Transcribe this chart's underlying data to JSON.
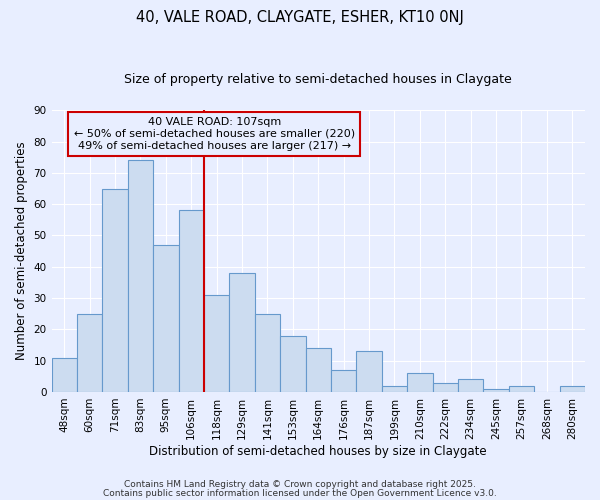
{
  "title": "40, VALE ROAD, CLAYGATE, ESHER, KT10 0NJ",
  "subtitle": "Size of property relative to semi-detached houses in Claygate",
  "xlabel": "Distribution of semi-detached houses by size in Claygate",
  "ylabel": "Number of semi-detached properties",
  "bar_labels": [
    "48sqm",
    "60sqm",
    "71sqm",
    "83sqm",
    "95sqm",
    "106sqm",
    "118sqm",
    "129sqm",
    "141sqm",
    "153sqm",
    "164sqm",
    "176sqm",
    "187sqm",
    "199sqm",
    "210sqm",
    "222sqm",
    "234sqm",
    "245sqm",
    "257sqm",
    "268sqm",
    "280sqm"
  ],
  "bar_values": [
    11,
    25,
    65,
    74,
    47,
    58,
    31,
    38,
    25,
    18,
    14,
    7,
    13,
    2,
    6,
    3,
    4,
    1,
    2,
    0,
    2
  ],
  "bar_color": "#ccdcf0",
  "bar_edge_color": "#6699cc",
  "vline_x": 5.5,
  "vline_color": "#cc0000",
  "ylim": [
    0,
    90
  ],
  "yticks": [
    0,
    10,
    20,
    30,
    40,
    50,
    60,
    70,
    80,
    90
  ],
  "annotation_title": "40 VALE ROAD: 107sqm",
  "annotation_line1": "← 50% of semi-detached houses are smaller (220)",
  "annotation_line2": "49% of semi-detached houses are larger (217) →",
  "annotation_box_color": "#cc0000",
  "footer1": "Contains HM Land Registry data © Crown copyright and database right 2025.",
  "footer2": "Contains public sector information licensed under the Open Government Licence v3.0.",
  "background_color": "#e8eeff",
  "grid_color": "#ffffff",
  "title_fontsize": 10.5,
  "subtitle_fontsize": 9,
  "axis_label_fontsize": 8.5,
  "tick_fontsize": 7.5,
  "annotation_fontsize": 8,
  "footer_fontsize": 6.5
}
